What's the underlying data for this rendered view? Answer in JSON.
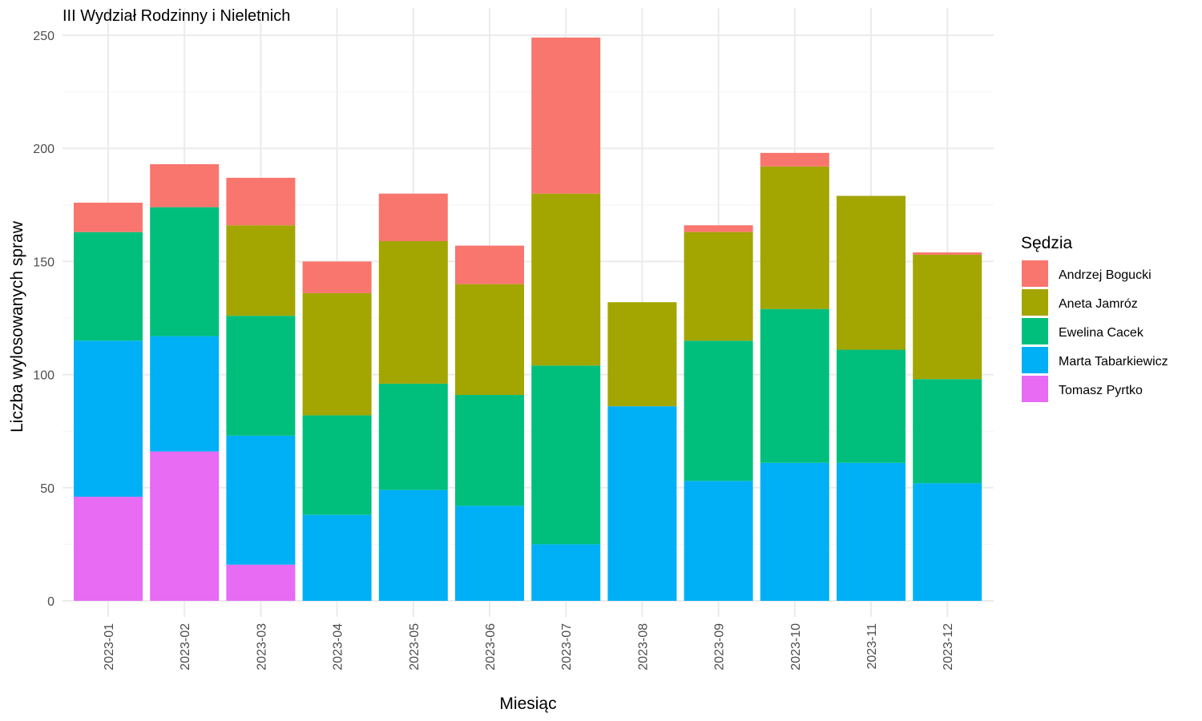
{
  "chart_data": {
    "type": "bar",
    "stacked": true,
    "title": "III Wydział Rodzinny i Nieletnich",
    "xlabel": "Miesiąc",
    "ylabel": "Liczba wylosowanych spraw",
    "ylim": [
      0,
      250
    ],
    "yticks": [
      0,
      50,
      100,
      150,
      200,
      250
    ],
    "grid": true,
    "legend_title": "Sędzia",
    "legend_position": "right",
    "categories": [
      "2023-01",
      "2023-02",
      "2023-03",
      "2023-04",
      "2023-05",
      "2023-06",
      "2023-07",
      "2023-08",
      "2023-09",
      "2023-10",
      "2023-11",
      "2023-12"
    ],
    "series": [
      {
        "name": "Tomasz Pyrtko",
        "color": "#e76bf3",
        "values": [
          46,
          66,
          16,
          0,
          0,
          0,
          0,
          0,
          0,
          0,
          0,
          0
        ]
      },
      {
        "name": "Marta Tabarkiewicz",
        "color": "#00b0f6",
        "values": [
          69,
          51,
          57,
          38,
          49,
          42,
          25,
          86,
          53,
          61,
          61,
          52
        ]
      },
      {
        "name": "Ewelina Cacek",
        "color": "#00bf7d",
        "values": [
          48,
          57,
          53,
          44,
          47,
          49,
          79,
          0,
          62,
          68,
          50,
          46
        ]
      },
      {
        "name": "Aneta Jamróz",
        "color": "#a3a500",
        "values": [
          0,
          0,
          40,
          54,
          63,
          49,
          76,
          46,
          48,
          63,
          68,
          55
        ]
      },
      {
        "name": "Andrzej Bogucki",
        "color": "#f8766d",
        "values": [
          13,
          19,
          21,
          14,
          21,
          17,
          69,
          0,
          3,
          6,
          0,
          1
        ]
      }
    ],
    "legend_order": [
      "Andrzej Bogucki",
      "Aneta Jamróz",
      "Ewelina Cacek",
      "Marta Tabarkiewicz",
      "Tomasz Pyrtko"
    ]
  }
}
